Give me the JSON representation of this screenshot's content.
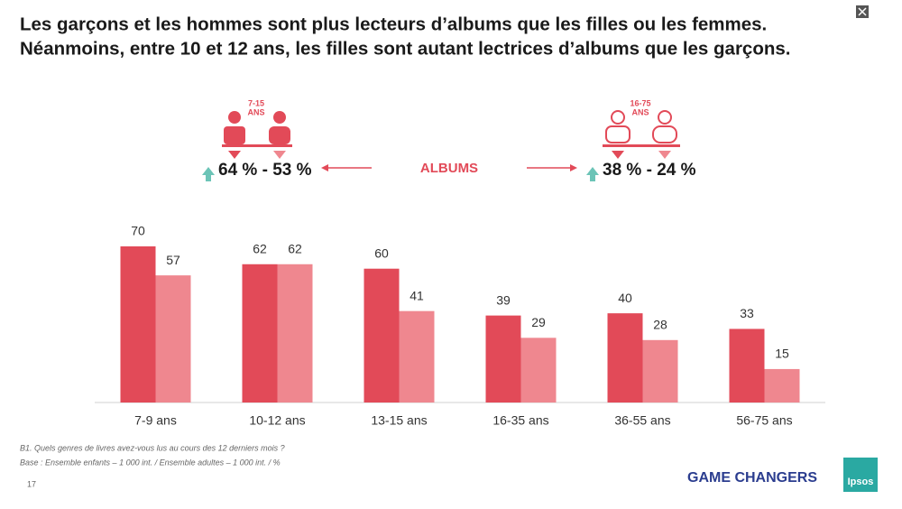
{
  "chart_data": {
    "type": "bar",
    "title": [
      "Les garçons et les hommes sont plus lecteurs d’albums que les filles ou les femmes.",
      "Néanmoins, entre 10 et 12 ans, les filles sont autant lectrices d’albums que les garçons."
    ],
    "categories": [
      "7-9 ans",
      "10-12 ans",
      "13-15 ans",
      "16-35 ans",
      "36-55 ans",
      "56-75 ans"
    ],
    "series": [
      {
        "color": "#e24a58",
        "values": [
          70,
          62,
          60,
          39,
          40,
          33
        ]
      },
      {
        "color": "#ef878f",
        "values": [
          57,
          62,
          41,
          29,
          28,
          15
        ]
      }
    ]
  },
  "slide": {
    "left_age": [
      "7-15",
      "ANS"
    ],
    "left_stat": "64 % - 53 %",
    "center_label": "ALBUMS",
    "right_age": [
      "16-75",
      "ANS"
    ],
    "right_stat": "38 % - 24 %",
    "footnotes": [
      "B1. Quels genres de livres avez-vous lus au cours des 12 derniers mois ?",
      "Base : Ensemble enfants – 1 000 int. / Ensemble adultes – 1 000 int. / %"
    ],
    "page_number": "17",
    "brand": "GAME CHANGERS",
    "logo": "Ipsos"
  }
}
